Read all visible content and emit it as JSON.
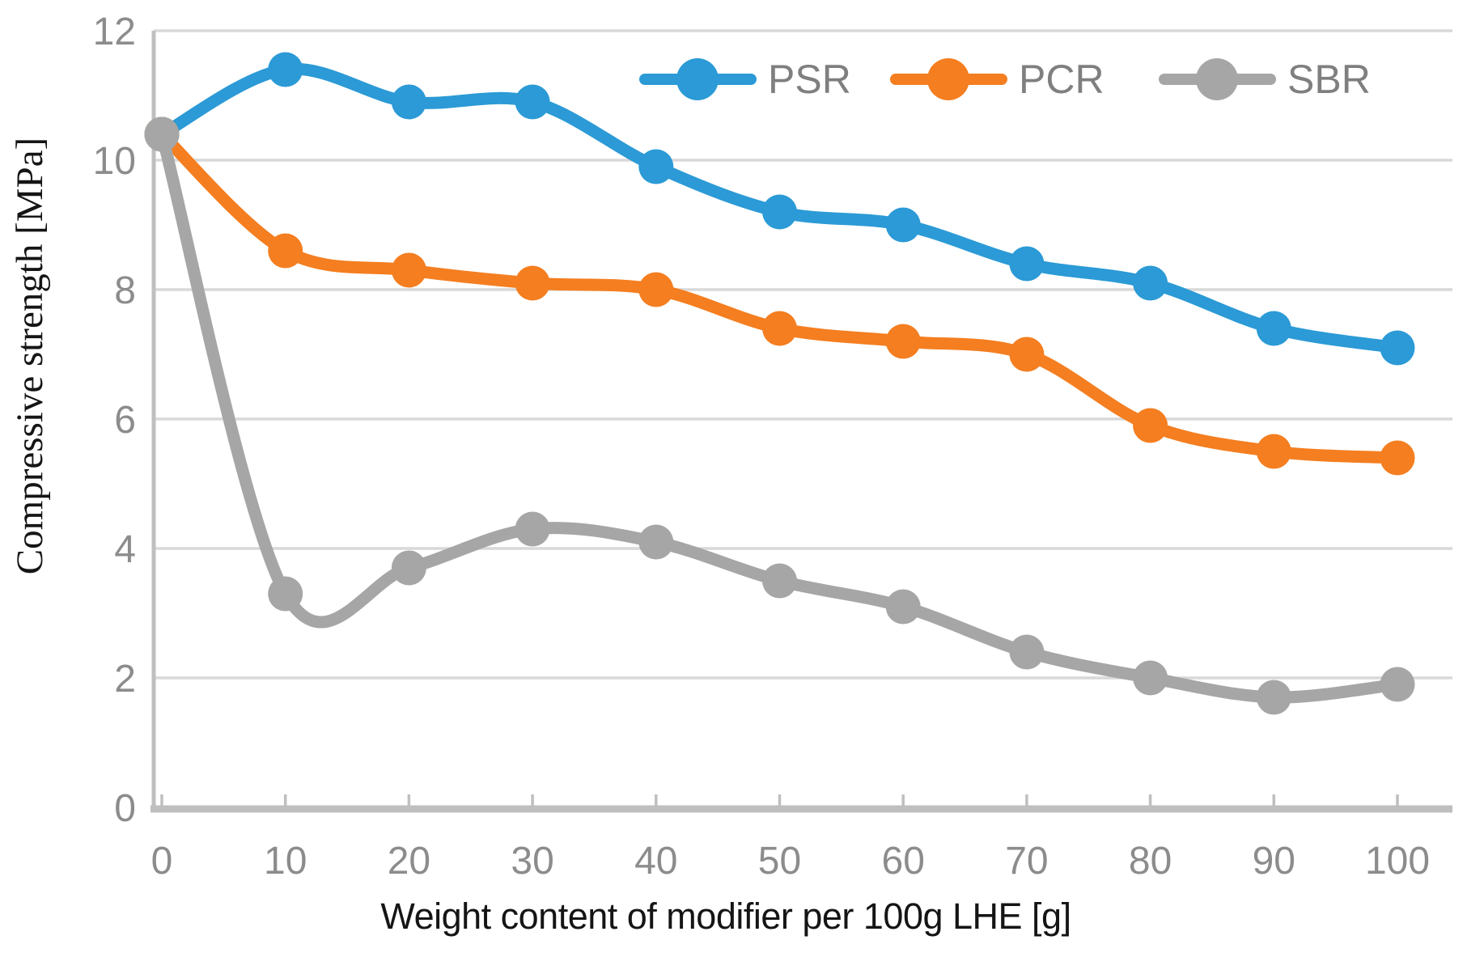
{
  "chart_data": {
    "type": "line",
    "title": "",
    "xlabel": "Weight content of modifier per 100g LHE [g]",
    "ylabel": "Compressive strength [MPa]",
    "x": [
      0,
      10,
      20,
      30,
      40,
      50,
      60,
      70,
      80,
      90,
      100
    ],
    "series": [
      {
        "name": "PSR",
        "color": "#2B9AD6",
        "values": [
          10.4,
          11.4,
          10.9,
          10.9,
          9.9,
          9.2,
          9.0,
          8.4,
          8.1,
          7.4,
          7.1
        ]
      },
      {
        "name": "PCR",
        "color": "#F47E20",
        "values": [
          10.4,
          8.6,
          8.3,
          8.1,
          8.0,
          7.4,
          7.2,
          7.0,
          5.9,
          5.5,
          5.4
        ]
      },
      {
        "name": "SBR",
        "color": "#A6A6A6",
        "values": [
          10.4,
          3.3,
          3.7,
          4.3,
          4.1,
          3.5,
          3.1,
          2.4,
          2.0,
          1.7,
          1.9
        ]
      }
    ],
    "x_ticks": [
      0,
      10,
      20,
      30,
      40,
      50,
      60,
      70,
      80,
      90,
      100
    ],
    "y_ticks": [
      0,
      2,
      4,
      6,
      8,
      10,
      12
    ],
    "xlim": [
      0,
      105
    ],
    "ylim": [
      0,
      12
    ],
    "grid": "horizontal",
    "smoothed": true,
    "legend_position": "top-inside"
  },
  "styles": {
    "grid_color": "#D9D9D9",
    "axis_line_color": "#BFBFBF",
    "tick_label_color": "#8C8C8C",
    "legend_text_color": "#7F7F7F",
    "axis_title_color": "#151515",
    "background": "#FFFFFF"
  }
}
